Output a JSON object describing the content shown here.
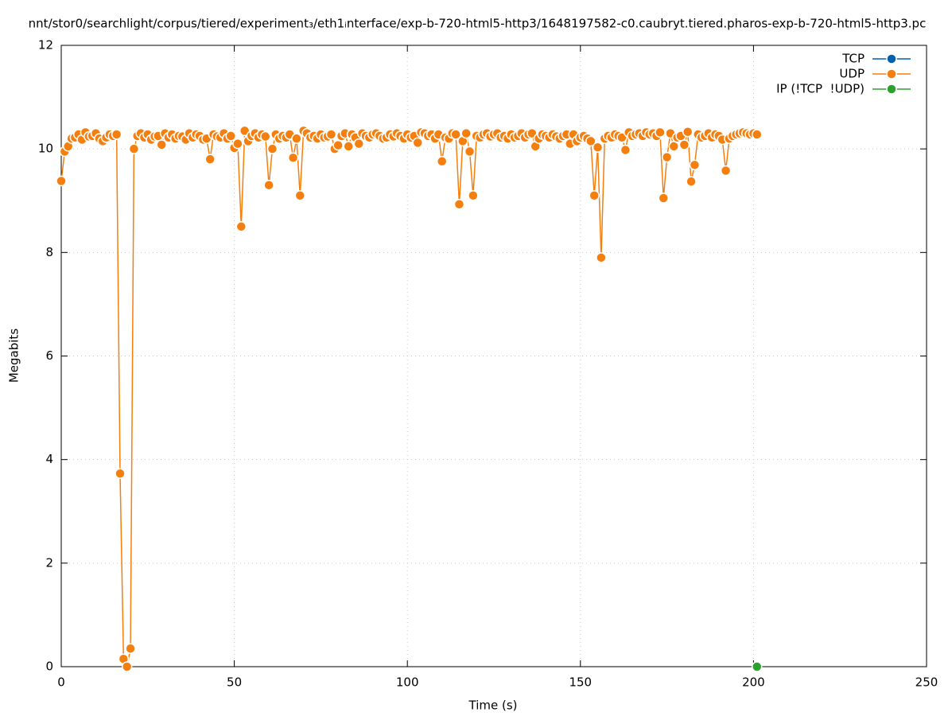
{
  "chart_data": {
    "type": "line",
    "title": "nnt/stor0/searchlight/corpus/tiered/experiment₃/eth1ᵢnterface/exp-b-720-html5-http3/1648197582-c0.caubryt.tiered.pharos-exp-b-720-html5-http3.pc",
    "xlabel": "Time (s)",
    "ylabel": "Megabits",
    "xlim": [
      0,
      250
    ],
    "xticks": [
      0,
      50,
      100,
      150,
      200,
      250
    ],
    "ylim": [
      0,
      12
    ],
    "yticks": [
      0,
      2,
      4,
      6,
      8,
      10,
      12
    ],
    "grid": true,
    "legend": "top-right",
    "series": [
      {
        "name": "TCP",
        "color": "#0060ad",
        "x": [],
        "values": []
      },
      {
        "name": "UDP",
        "color": "#f57f0e",
        "x": [
          0,
          1,
          2,
          3,
          4,
          5,
          6,
          7,
          8,
          9,
          10,
          11,
          12,
          13,
          14,
          15,
          16,
          17,
          18,
          19,
          20,
          21,
          22,
          23,
          24,
          25,
          26,
          27,
          28,
          29,
          30,
          31,
          32,
          33,
          34,
          35,
          36,
          37,
          38,
          39,
          40,
          41,
          42,
          43,
          44,
          45,
          46,
          47,
          48,
          49,
          50,
          51,
          52,
          53,
          54,
          55,
          56,
          57,
          58,
          59,
          60,
          61,
          62,
          63,
          64,
          65,
          66,
          67,
          68,
          69,
          70,
          71,
          72,
          73,
          74,
          75,
          76,
          77,
          78,
          79,
          80,
          81,
          82,
          83,
          84,
          85,
          86,
          87,
          88,
          89,
          90,
          91,
          92,
          93,
          94,
          95,
          96,
          97,
          98,
          99,
          100,
          101,
          102,
          103,
          104,
          105,
          106,
          107,
          108,
          109,
          110,
          111,
          112,
          113,
          114,
          115,
          116,
          117,
          118,
          119,
          120,
          121,
          122,
          123,
          124,
          125,
          126,
          127,
          128,
          129,
          130,
          131,
          132,
          133,
          134,
          135,
          136,
          137,
          138,
          139,
          140,
          141,
          142,
          143,
          144,
          145,
          146,
          147,
          148,
          149,
          150,
          151,
          152,
          153,
          154,
          155,
          156,
          157,
          158,
          159,
          160,
          161,
          162,
          163,
          164,
          165,
          166,
          167,
          168,
          169,
          170,
          171,
          172,
          173,
          174,
          175,
          176,
          177,
          178,
          179,
          180,
          181,
          182,
          183,
          184,
          185,
          186,
          187,
          188,
          189,
          190,
          191,
          192,
          193,
          194,
          195,
          196,
          197,
          198,
          199,
          200,
          201
        ],
        "values": [
          9.38,
          9.95,
          10.05,
          10.2,
          10.22,
          10.28,
          10.18,
          10.32,
          10.24,
          10.25,
          10.3,
          10.2,
          10.15,
          10.22,
          10.28,
          10.25,
          10.28,
          3.73,
          0.15,
          0,
          0.35,
          10.0,
          10.25,
          10.3,
          10.22,
          10.28,
          10.18,
          10.24,
          10.25,
          10.08,
          10.3,
          10.22,
          10.28,
          10.2,
          10.25,
          10.24,
          10.18,
          10.3,
          10.22,
          10.28,
          10.25,
          10.18,
          10.2,
          9.8,
          10.28,
          10.24,
          10.22,
          10.3,
          10.2,
          10.25,
          10.02,
          10.1,
          8.5,
          10.35,
          10.15,
          10.25,
          10.3,
          10.22,
          10.28,
          10.24,
          9.3,
          10.0,
          10.28,
          10.2,
          10.25,
          10.22,
          10.28,
          9.83,
          10.2,
          9.1,
          10.35,
          10.3,
          10.22,
          10.25,
          10.2,
          10.28,
          10.22,
          10.24,
          10.28,
          10.0,
          10.07,
          10.25,
          10.3,
          10.05,
          10.28,
          10.22,
          10.1,
          10.3,
          10.25,
          10.22,
          10.28,
          10.3,
          10.25,
          10.2,
          10.22,
          10.28,
          10.24,
          10.3,
          10.25,
          10.2,
          10.28,
          10.22,
          10.25,
          10.12,
          10.32,
          10.3,
          10.25,
          10.28,
          10.2,
          10.28,
          9.76,
          10.22,
          10.2,
          10.3,
          10.28,
          8.93,
          10.15,
          10.3,
          9.95,
          9.1,
          10.25,
          10.22,
          10.28,
          10.3,
          10.24,
          10.28,
          10.3,
          10.22,
          10.25,
          10.2,
          10.28,
          10.22,
          10.25,
          10.3,
          10.22,
          10.28,
          10.3,
          10.05,
          10.2,
          10.28,
          10.25,
          10.22,
          10.28,
          10.24,
          10.2,
          10.25,
          10.28,
          10.1,
          10.28,
          10.15,
          10.22,
          10.25,
          10.2,
          10.15,
          9.1,
          10.03,
          7.9,
          10.2,
          10.25,
          10.22,
          10.28,
          10.25,
          10.22,
          9.98,
          10.32,
          10.25,
          10.28,
          10.3,
          10.25,
          10.32,
          10.28,
          10.3,
          10.25,
          10.32,
          9.05,
          9.84,
          10.3,
          10.05,
          10.22,
          10.25,
          10.08,
          10.33,
          9.37,
          9.69,
          10.28,
          10.22,
          10.25,
          10.3,
          10.22,
          10.28,
          10.25,
          10.18,
          9.58,
          10.2,
          10.25,
          10.28,
          10.3,
          10.32,
          10.3,
          10.28,
          10.3,
          10.28
        ]
      },
      {
        "name": "IP (!TCP  !UDP)",
        "color": "#2ca02c",
        "x": [
          201
        ],
        "values": [
          0
        ]
      }
    ]
  }
}
